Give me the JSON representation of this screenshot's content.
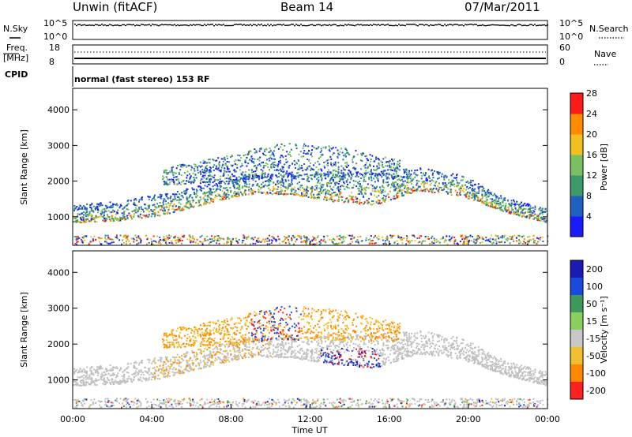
{
  "header": {
    "station": "Unwin (fitACF)",
    "beam": "Beam 14",
    "date": "07/Mar/2011"
  },
  "top_panel": {
    "left_labels": {
      "nsky": "N.Sky",
      "freq": "Freq.",
      "freq_unit": "[MHz]",
      "cpid": "CPID"
    },
    "right_labels": {
      "nsearch": "N.Search",
      "nave": "Nave"
    },
    "noise_ticks": [
      "10^5",
      "10^0"
    ],
    "freq_ticks": [
      "18",
      "8"
    ],
    "nave_ticks": [
      "60",
      "0"
    ],
    "cpid_text": "normal (fast stereo) 153 RF"
  },
  "chart_data": [
    {
      "type": "heatmap",
      "name": "power-panel",
      "ylabel": "Slant Range [km]",
      "xlabel": "",
      "x_range_hours": [
        0,
        24
      ],
      "ylim": [
        200,
        4600
      ],
      "yticks": [
        "1000",
        "2000",
        "3000",
        "4000"
      ],
      "colorbar": {
        "label": "Power [dB]",
        "ticks": [
          "4",
          "8",
          "12",
          "16",
          "20",
          "24",
          "28"
        ],
        "range": [
          0,
          30
        ],
        "colors": [
          "#1a1aff",
          "#2060c0",
          "#3d9a6a",
          "#7ac060",
          "#f0c020",
          "#ff8c00",
          "#ff1a1a"
        ]
      },
      "echo_bands": [
        {
          "description": "main band",
          "start_h": 0,
          "end_h": 24,
          "lower_km": [
            850,
            900,
            1050,
            1350,
            1650,
            1650,
            1450,
            1350,
            1750,
            1600,
            1150,
            850
          ],
          "upper_km": [
            1350,
            1450,
            1650,
            1900,
            2200,
            2250,
            2250,
            2300,
            2400,
            2200,
            1550,
            1250
          ]
        },
        {
          "description": "upper band",
          "start_h": 4.5,
          "end_h": 16.5,
          "lower_km": [
            1900,
            2000,
            2150,
            2100,
            2100
          ],
          "upper_km": [
            2400,
            2700,
            3100,
            3000,
            2600
          ]
        }
      ]
    },
    {
      "type": "heatmap",
      "name": "velocity-panel",
      "ylabel": "Slant Range [km]",
      "xlabel": "Time UT",
      "x_ticks": [
        "00:00",
        "04:00",
        "08:00",
        "12:00",
        "16:00",
        "20:00",
        "00:00"
      ],
      "ylim": [
        200,
        4600
      ],
      "yticks": [
        "1000",
        "2000",
        "3000",
        "4000"
      ],
      "colorbar": {
        "label": "Velocity [m s⁻¹]",
        "ticks": [
          "200",
          "100",
          "50",
          "15",
          "-15",
          "-50",
          "-100",
          "-200"
        ],
        "colors": [
          "#1a1ab4",
          "#1a4adc",
          "#3d9a5a",
          "#8ad060",
          "#c8c8c8",
          "#f0c030",
          "#ff8800",
          "#ff2020"
        ]
      },
      "ground_scatter_color": "#c0c0c0"
    }
  ]
}
